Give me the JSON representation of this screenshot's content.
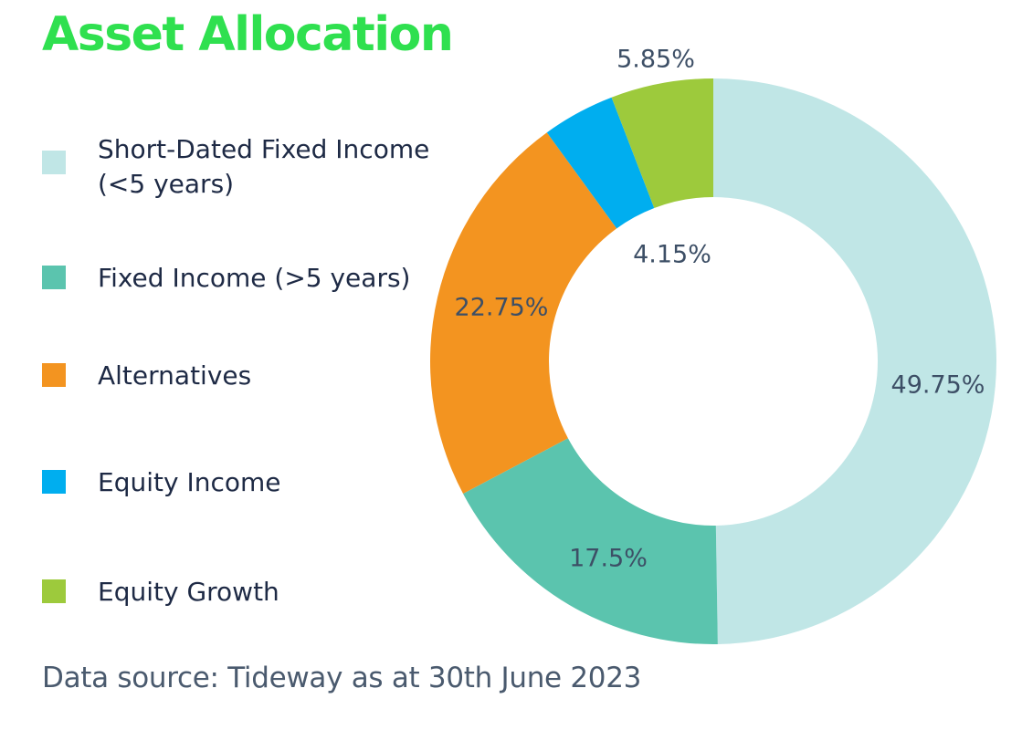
{
  "title": "Asset Allocation",
  "source": "Data source: Tideway as at 30th June 2023",
  "chart_data": {
    "type": "pie",
    "title": "Asset Allocation",
    "donut": true,
    "legend_position": "left",
    "slices": [
      {
        "label": "Short-Dated Fixed Income\n(<5 years)",
        "value": 49.75,
        "display": "49.75%",
        "color": "#c0e6e6"
      },
      {
        "label": "Fixed Income (>5 years)",
        "value": 17.5,
        "display": "17.5%",
        "color": "#5bc4ae"
      },
      {
        "label": "Alternatives",
        "value": 22.75,
        "display": "22.75%",
        "color": "#f39420"
      },
      {
        "label": "Equity Income",
        "value": 4.15,
        "display": "4.15%",
        "color": "#00aeef"
      },
      {
        "label": "Equity Growth",
        "value": 5.85,
        "display": "5.85%",
        "color": "#9dca3c"
      }
    ]
  }
}
